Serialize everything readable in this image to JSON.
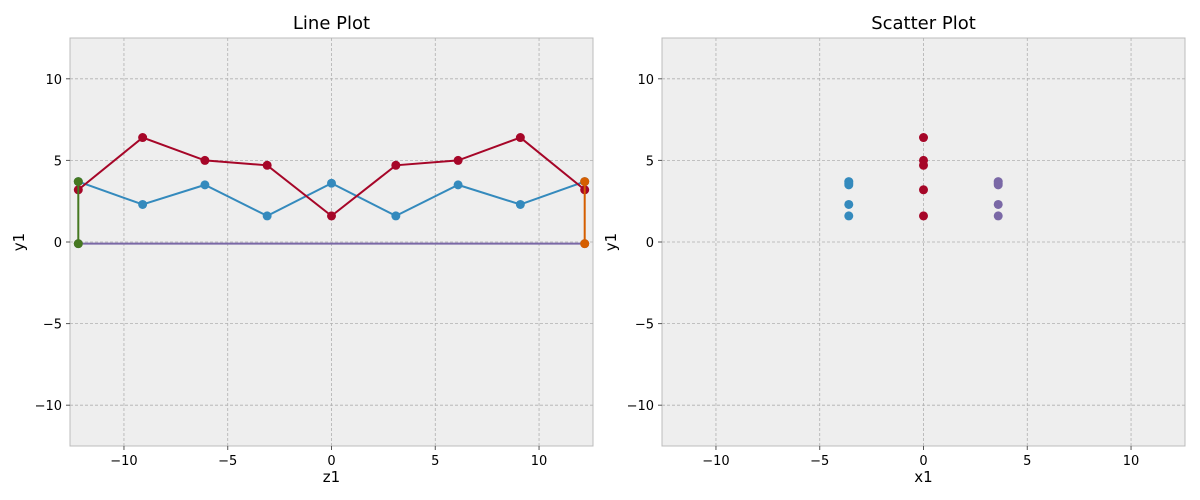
{
  "chart_data": [
    {
      "type": "line",
      "title": "Line Plot",
      "xlabel": "z1",
      "ylabel": "y1",
      "xlim": [
        -12.6,
        12.6
      ],
      "ylim": [
        -12.5,
        12.5
      ],
      "xticks": [
        -10,
        -5,
        0,
        5,
        10
      ],
      "yticks": [
        -10,
        -5,
        0,
        5,
        10
      ],
      "xtick_labels": [
        "−10",
        "−5",
        "0",
        "5",
        "10"
      ],
      "ytick_labels": [
        "−10",
        "−5",
        "0",
        "5",
        "10"
      ],
      "grid": true,
      "series": [
        {
          "name": "blue",
          "color": "#348abd",
          "x": [
            -12.2,
            -9.1,
            -6.1,
            -3.1,
            0,
            3.1,
            6.1,
            9.1,
            12.2
          ],
          "y": [
            3.7,
            2.3,
            3.5,
            1.6,
            3.6,
            1.6,
            3.5,
            2.3,
            3.7
          ]
        },
        {
          "name": "red",
          "color": "#a60628",
          "x": [
            -12.2,
            -9.1,
            -6.1,
            -3.1,
            0,
            3.1,
            6.1,
            9.1,
            12.2
          ],
          "y": [
            3.2,
            6.4,
            5.0,
            4.7,
            1.6,
            4.7,
            5.0,
            6.4,
            3.2
          ]
        },
        {
          "name": "purple",
          "color": "#7a68a6",
          "x": [
            -12.2,
            12.2
          ],
          "y": [
            -0.1,
            -0.1
          ]
        },
        {
          "name": "green",
          "color": "#467821",
          "x": [
            -12.2,
            -12.2
          ],
          "y": [
            -0.1,
            3.7
          ]
        },
        {
          "name": "orange",
          "color": "#d55e00",
          "x": [
            12.2,
            12.2
          ],
          "y": [
            -0.1,
            3.7
          ]
        }
      ]
    },
    {
      "type": "scatter",
      "title": "Scatter Plot",
      "xlabel": "x1",
      "ylabel": "y1",
      "xlim": [
        -12.6,
        12.6
      ],
      "ylim": [
        -12.5,
        12.5
      ],
      "xticks": [
        -10,
        -5,
        0,
        5,
        10
      ],
      "yticks": [
        -10,
        -5,
        0,
        5,
        10
      ],
      "xtick_labels": [
        "−10",
        "−5",
        "0",
        "5",
        "10"
      ],
      "ytick_labels": [
        "−10",
        "−5",
        "0",
        "5",
        "10"
      ],
      "grid": true,
      "series": [
        {
          "name": "blue",
          "color": "#348abd",
          "x": [
            -3.6,
            -3.6,
            -3.6,
            -3.6,
            -3.6
          ],
          "y": [
            3.7,
            3.6,
            3.5,
            2.3,
            1.6
          ]
        },
        {
          "name": "red",
          "color": "#a60628",
          "x": [
            0,
            0,
            0,
            0,
            0
          ],
          "y": [
            6.4,
            5.0,
            4.7,
            3.2,
            1.6
          ]
        },
        {
          "name": "purple",
          "color": "#7a68a6",
          "x": [
            3.6,
            3.6,
            3.6,
            3.6,
            3.6
          ],
          "y": [
            3.7,
            3.6,
            3.5,
            2.3,
            1.6
          ]
        }
      ]
    }
  ]
}
